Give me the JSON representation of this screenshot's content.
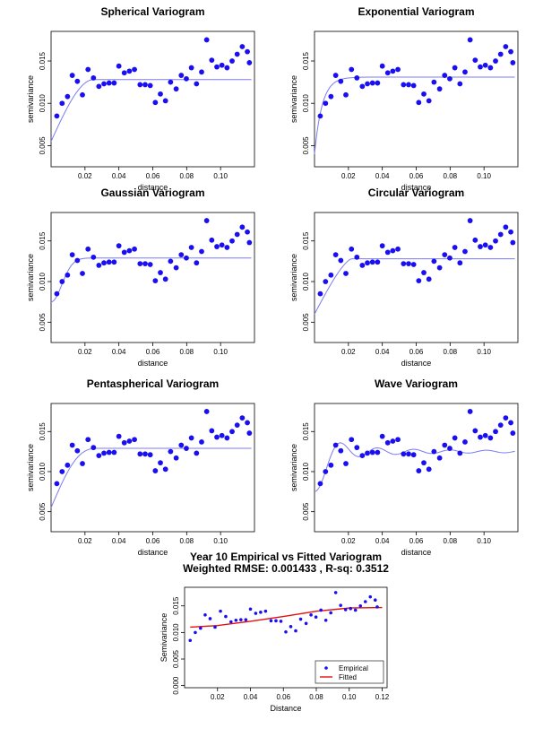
{
  "figure": {
    "panel_titles": [
      "Spherical Variogram",
      "Exponential Variogram",
      "Gaussian Variogram",
      "Circular Variogram",
      "Pentaspherical Variogram",
      "Wave Variogram",
      "Year 10 Empirical vs Fitted Variogram"
    ]
  },
  "colors": {
    "points": "#1a0ff0",
    "model_line": "#7b7bf3",
    "fitted_line": "#e01010",
    "axis": "#000000"
  },
  "empirical_points": {
    "x": [
      0.0034,
      0.0065,
      0.0097,
      0.0125,
      0.0155,
      0.0185,
      0.0218,
      0.025,
      0.0282,
      0.0312,
      0.0342,
      0.0372,
      0.04,
      0.0432,
      0.0462,
      0.0492,
      0.0525,
      0.0555,
      0.0585,
      0.0615,
      0.0645,
      0.0675,
      0.0705,
      0.0738,
      0.0768,
      0.0798,
      0.0828,
      0.0858,
      0.0888,
      0.0918,
      0.0948,
      0.0978,
      0.1008,
      0.1038,
      0.1068,
      0.1098,
      0.1128,
      0.1158,
      0.117
    ],
    "y": [
      0.0085,
      0.01,
      0.0108,
      0.0133,
      0.0126,
      0.011,
      0.014,
      0.013,
      0.012,
      0.0123,
      0.0124,
      0.0124,
      0.0144,
      0.0136,
      0.0138,
      0.014,
      0.0122,
      0.0122,
      0.0121,
      0.0101,
      0.0111,
      0.0103,
      0.0125,
      0.0117,
      0.0133,
      0.0129,
      0.0142,
      0.0123,
      0.0137,
      0.0175,
      0.0151,
      0.0143,
      0.0145,
      0.0142,
      0.015,
      0.0158,
      0.0167,
      0.0161,
      0.0148
    ]
  },
  "chart_data": [
    {
      "type": "scatter",
      "title": "Spherical Variogram",
      "xlabel": "distance",
      "ylabel": "semivariance",
      "xlim": [
        0,
        0.12
      ],
      "ylim": [
        0.0025,
        0.0185
      ],
      "xticks": [
        0.02,
        0.04,
        0.06,
        0.08,
        0.1
      ],
      "xtick_labels": [
        "0.02",
        "0.04",
        "0.06",
        "0.08",
        "0.10"
      ],
      "yticks": [
        0.005,
        0.01,
        0.015
      ],
      "ytick_labels": [
        "0.005",
        "0.010",
        "0.015"
      ],
      "points_ref": "empirical_points",
      "model": {
        "kind": "spherical",
        "nugget": 0.0055,
        "sill": 0.0128,
        "range": 0.025
      }
    },
    {
      "type": "scatter",
      "title": "Exponential Variogram",
      "xlabel": "distance",
      "ylabel": "semivariance",
      "xlim": [
        0,
        0.12
      ],
      "ylim": [
        0.0025,
        0.0185
      ],
      "xticks": [
        0.02,
        0.04,
        0.06,
        0.08,
        0.1
      ],
      "xtick_labels": [
        "0.02",
        "0.04",
        "0.06",
        "0.08",
        "0.10"
      ],
      "yticks": [
        0.005,
        0.01,
        0.015
      ],
      "ytick_labels": [
        "0.005",
        "0.010",
        "0.015"
      ],
      "points_ref": "empirical_points",
      "model": {
        "kind": "exponential",
        "nugget": 0.004,
        "sill": 0.0131,
        "range": 0.0045
      }
    },
    {
      "type": "scatter",
      "title": "Gaussian Variogram",
      "xlabel": "distance",
      "ylabel": "semivariance",
      "xlim": [
        0,
        0.12
      ],
      "ylim": [
        0.0025,
        0.0185
      ],
      "xticks": [
        0.02,
        0.04,
        0.06,
        0.08,
        0.1
      ],
      "xtick_labels": [
        "0.02",
        "0.04",
        "0.06",
        "0.08",
        "0.10"
      ],
      "yticks": [
        0.005,
        0.01,
        0.015
      ],
      "ytick_labels": [
        "0.005",
        "0.010",
        "0.015"
      ],
      "points_ref": "empirical_points",
      "model": {
        "kind": "gaussian",
        "nugget": 0.0075,
        "sill": 0.0129,
        "range": 0.009
      }
    },
    {
      "type": "scatter",
      "title": "Circular Variogram",
      "xlabel": "distance",
      "ylabel": "semivariance",
      "xlim": [
        0,
        0.12
      ],
      "ylim": [
        0.0025,
        0.0185
      ],
      "xticks": [
        0.02,
        0.04,
        0.06,
        0.08,
        0.1
      ],
      "xtick_labels": [
        "0.02",
        "0.04",
        "0.06",
        "0.08",
        "0.10"
      ],
      "yticks": [
        0.005,
        0.01,
        0.015
      ],
      "ytick_labels": [
        "0.005",
        "0.010",
        "0.015"
      ],
      "points_ref": "empirical_points",
      "model": {
        "kind": "circular",
        "nugget": 0.006,
        "sill": 0.0128,
        "range": 0.022
      }
    },
    {
      "type": "scatter",
      "title": "Pentaspherical Variogram",
      "xlabel": "distance",
      "ylabel": "semivariance",
      "xlim": [
        0,
        0.12
      ],
      "ylim": [
        0.0025,
        0.0185
      ],
      "xticks": [
        0.02,
        0.04,
        0.06,
        0.08,
        0.1
      ],
      "xtick_labels": [
        "0.02",
        "0.04",
        "0.06",
        "0.08",
        "0.10"
      ],
      "yticks": [
        0.005,
        0.01,
        0.015
      ],
      "ytick_labels": [
        "0.005",
        "0.010",
        "0.015"
      ],
      "points_ref": "empirical_points",
      "model": {
        "kind": "pentaspherical",
        "nugget": 0.0055,
        "sill": 0.0129,
        "range": 0.028
      }
    },
    {
      "type": "scatter",
      "title": "Wave Variogram",
      "xlabel": "distance",
      "ylabel": "semivariance",
      "xlim": [
        0,
        0.12
      ],
      "ylim": [
        0.0025,
        0.0185
      ],
      "xticks": [
        0.02,
        0.04,
        0.06,
        0.08,
        0.1
      ],
      "xtick_labels": [
        "0.02",
        "0.04",
        "0.06",
        "0.08",
        "0.10"
      ],
      "yticks": [
        0.005,
        0.01,
        0.015
      ],
      "ytick_labels": [
        "0.005",
        "0.010",
        "0.015"
      ],
      "points_ref": "empirical_points",
      "model": {
        "kind": "wave",
        "nugget": 0.0075,
        "sill": 0.0125,
        "range": 0.0034
      }
    },
    {
      "type": "scatter",
      "title": "Year 10 Empirical vs Fitted Variogram",
      "subtitle": "Weighted RMSE: 0.001433 , R-sq: 0.3512",
      "xlabel": "Distance",
      "ylabel": "Semivariance",
      "xlim": [
        0,
        0.123
      ],
      "ylim": [
        -0.0004,
        0.0185
      ],
      "xticks": [
        0.02,
        0.04,
        0.06,
        0.08,
        0.1,
        0.12
      ],
      "xtick_labels": [
        "0.02",
        "0.04",
        "0.06",
        "0.08",
        "0.10",
        "0.12"
      ],
      "yticks": [
        0,
        0.005,
        0.01,
        0.015
      ],
      "ytick_labels": [
        "0.000",
        "0.005",
        "0.010",
        "0.015"
      ],
      "points_ref": "empirical_points",
      "fitted_line": {
        "x": [
          0.0034,
          0.02,
          0.04,
          0.06,
          0.08,
          0.1,
          0.12
        ],
        "y": [
          0.011,
          0.0113,
          0.0121,
          0.013,
          0.014,
          0.0146,
          0.0147
        ]
      },
      "legend": {
        "position": "bottom-right",
        "entries": [
          "Empirical",
          "Fitted"
        ]
      }
    }
  ]
}
